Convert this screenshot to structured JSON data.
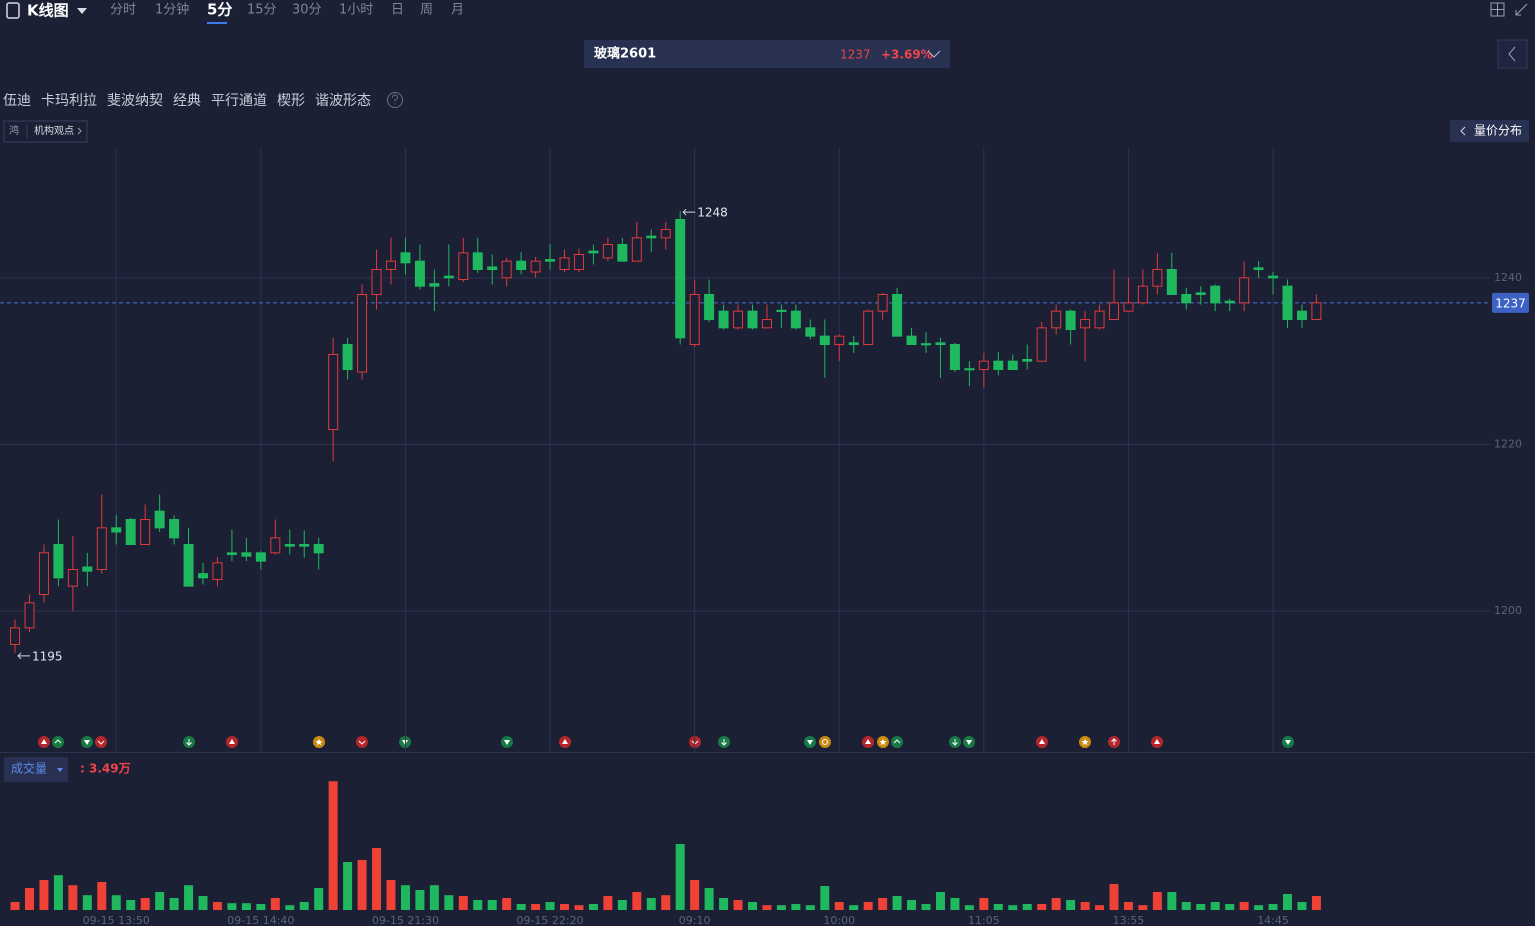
{
  "ui": {
    "title": "K线图",
    "periods": [
      "分时",
      "1分钟",
      "5分",
      "15分",
      "30分",
      "1小时",
      "日",
      "周",
      "月"
    ],
    "active_period": "5分",
    "symbol": {
      "name": "玻璃2601",
      "price": 1237,
      "change": "+3.69%"
    },
    "tools": [
      "伍迪",
      "卡玛利拉",
      "斐波纳契",
      "经典",
      "平行通道",
      "楔形",
      "谐波形态"
    ],
    "badge": "鸿",
    "opinion": "机构观点",
    "volume_profile": "量价分布"
  },
  "chart_data": {
    "type": "candlestick",
    "categories": [
      null,
      null,
      null,
      null,
      null,
      null,
      null,
      "09-15 13:50",
      null,
      null,
      null,
      null,
      null,
      null,
      null,
      null,
      null,
      "09-15 14:40",
      null,
      null,
      null,
      null,
      null,
      null,
      null,
      null,
      null,
      "09-15 21:30",
      null,
      null,
      null,
      null,
      null,
      null,
      null,
      null,
      null,
      "09-15 22:20",
      null,
      null,
      null,
      null,
      null,
      null,
      null,
      null,
      null,
      "09:10",
      null,
      null,
      null,
      null,
      null,
      null,
      null,
      null,
      null,
      "10:00",
      null,
      null,
      null,
      null,
      null,
      null,
      null,
      null,
      null,
      "11:05",
      null,
      null,
      null,
      null,
      null,
      null,
      null,
      null,
      null,
      "13:55",
      null,
      null,
      null,
      null,
      null,
      null,
      null,
      null,
      null,
      "14:45",
      null,
      null,
      null
    ],
    "open": [
      1196,
      1198,
      1202,
      1208,
      1203,
      1205.3,
      1205,
      1210,
      1211,
      1208,
      1212,
      1211,
      1208,
      1204.5,
      1203.8,
      1207,
      1207,
      1207,
      1207,
      1208,
      1208,
      1208,
      1221.8,
      1232,
      1228.7,
      1238,
      1241,
      1243,
      1242,
      1239.3,
      1240.2,
      1239.8,
      1243,
      1241.3,
      1240,
      1242,
      1240.7,
      1242.2,
      1241,
      1241,
      1243.2,
      1242.4,
      1244,
      1242,
      1245,
      1244.8,
      1247,
      1232,
      1238,
      1236,
      1234,
      1236,
      1234,
      1236.1,
      1236,
      1234,
      1233,
      1232,
      1232.2,
      1232,
      1236,
      1238,
      1233,
      1232.1,
      1232.2,
      1232,
      1229.1,
      1229,
      1230,
      1230,
      1230.2,
      1230,
      1234,
      1236,
      1234,
      1234,
      1235,
      1236,
      1237,
      1239,
      1241,
      1238,
      1238.2,
      1239,
      1237.2,
      1237,
      1241.2,
      1240.2,
      1239,
      1236,
      1235
    ],
    "high": [
      1199,
      1202,
      1208,
      1211,
      1209,
      1207,
      1214,
      1211.5,
      1211.2,
      1212.8,
      1214,
      1211.5,
      1210,
      1205.8,
      1206.5,
      1209.8,
      1208.8,
      1207.2,
      1211,
      1209.8,
      1209.7,
      1208.8,
      1232.8,
      1232.8,
      1239.2,
      1243.4,
      1244.8,
      1244.8,
      1244,
      1241,
      1244,
      1244.8,
      1244.8,
      1242.8,
      1242.4,
      1243.1,
      1242.5,
      1244,
      1243.4,
      1243.5,
      1244,
      1244.8,
      1244.8,
      1246.7,
      1245.8,
      1246.7,
      1248,
      1239.8,
      1239.8,
      1236.8,
      1236.8,
      1236.8,
      1236.8,
      1236.8,
      1236.8,
      1235,
      1235,
      1233.2,
      1233,
      1236.2,
      1238.2,
      1238.8,
      1234,
      1233.5,
      1232.8,
      1232.2,
      1230,
      1231,
      1231.1,
      1230.8,
      1232,
      1234.7,
      1236.8,
      1236.2,
      1236,
      1236.8,
      1241,
      1240,
      1241,
      1243,
      1243,
      1238.8,
      1239,
      1239.2,
      1237.5,
      1242,
      1242,
      1240.7,
      1239.8,
      1236.8,
      1238
    ],
    "low": [
      1195,
      1197.5,
      1201,
      1203,
      1200,
      1203,
      1204.5,
      1208,
      1208,
      1208,
      1209.5,
      1208,
      1203,
      1203.2,
      1203,
      1206,
      1206,
      1205,
      1206.8,
      1206.8,
      1206.4,
      1205,
      1218,
      1227.8,
      1227.8,
      1236.2,
      1239.2,
      1240.4,
      1238.6,
      1236,
      1239,
      1239.5,
      1240.6,
      1239.2,
      1239,
      1240.4,
      1240,
      1241,
      1240.7,
      1240.7,
      1241.6,
      1242,
      1242,
      1242,
      1243.1,
      1243.4,
      1232,
      1231.7,
      1234.7,
      1233.8,
      1233.8,
      1233.8,
      1234,
      1234,
      1233.8,
      1232.6,
      1228,
      1230,
      1231,
      1232,
      1235,
      1233,
      1232,
      1231,
      1228,
      1228.7,
      1227,
      1226.8,
      1228.3,
      1229,
      1229,
      1230,
      1233.2,
      1232,
      1230,
      1233.8,
      1235,
      1236,
      1236.8,
      1238,
      1238,
      1236.2,
      1236.8,
      1236,
      1236,
      1236,
      1240,
      1238,
      1234,
      1234,
      1235
    ],
    "close": [
      1198,
      1201,
      1207,
      1204,
      1205,
      1204.8,
      1210,
      1209.5,
      1208,
      1211,
      1210,
      1208.8,
      1203,
      1204,
      1205.8,
      1206.8,
      1206.6,
      1206,
      1208.8,
      1207.8,
      1207.8,
      1207,
      1230.8,
      1229,
      1238,
      1241,
      1242,
      1241.8,
      1239,
      1239,
      1240,
      1243,
      1241,
      1241,
      1242,
      1241,
      1242,
      1242,
      1242.4,
      1242.8,
      1243,
      1244,
      1242,
      1244.8,
      1244.8,
      1245.8,
      1232.8,
      1238,
      1235,
      1234,
      1236,
      1234,
      1235,
      1236,
      1234,
      1233,
      1232,
      1233,
      1232,
      1236,
      1238,
      1233,
      1232,
      1232,
      1232,
      1229,
      1229,
      1230,
      1229,
      1229,
      1230,
      1234,
      1236,
      1233.8,
      1235,
      1236,
      1237,
      1237,
      1239,
      1241,
      1238,
      1237,
      1238,
      1237,
      1237,
      1240,
      1241,
      1240,
      1235,
      1235,
      1237
    ],
    "ylim": [
      1183.1,
      1255.7
    ],
    "yticks": [
      1200,
      1220,
      1240
    ],
    "grid": true,
    "up_color": "#e0393c",
    "down_color": "#1fb85f",
    "last_price": 1237,
    "annotations": {
      "low": 1195,
      "high": 1248
    },
    "volume": {
      "title": "成交量",
      "value_label": ": 3.49万",
      "ylim": [
        0,
        32.5
      ],
      "values": [
        2.0,
        5.5,
        7.5,
        8.7,
        6.2,
        3.7,
        7.0,
        3.7,
        2.5,
        3.0,
        4.5,
        3.0,
        6.2,
        3.5,
        2.0,
        1.7,
        1.7,
        1.5,
        3.0,
        1.2,
        2.0,
        5.5,
        32.2,
        12.0,
        12.5,
        15.5,
        7.5,
        6.2,
        5.0,
        6.2,
        3.7,
        3.5,
        2.5,
        2.5,
        3.0,
        1.5,
        1.5,
        2.0,
        1.5,
        1.2,
        1.5,
        3.5,
        2.5,
        4.5,
        3.0,
        3.7,
        16.5,
        7.5,
        5.5,
        3.0,
        2.5,
        2.0,
        1.2,
        1.2,
        1.5,
        1.2,
        6.0,
        2.0,
        1.2,
        2.0,
        3.0,
        3.5,
        2.5,
        1.5,
        4.5,
        3.0,
        1.2,
        3.0,
        1.5,
        1.2,
        1.5,
        1.5,
        3.0,
        2.5,
        2.0,
        1.2,
        6.5,
        2.0,
        1.2,
        4.5,
        4.5,
        2.0,
        1.5,
        2.0,
        1.5,
        2.0,
        1.2,
        1.5,
        4.0,
        2.0,
        3.49
      ]
    }
  }
}
